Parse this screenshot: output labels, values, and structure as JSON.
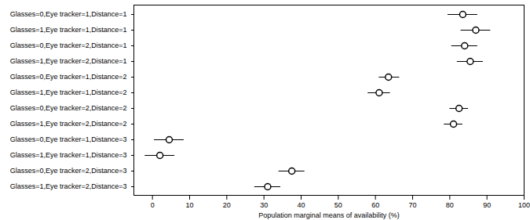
{
  "chart_data": {
    "type": "dot",
    "orientation": "horizontal",
    "categories": [
      "Glasses=0,Eye tracker=1,Distance=1",
      "Glasses=1,Eye tracker=1,Distance=1",
      "Glasses=0,Eye tracker=2,Distance=1",
      "Glasses=1,Eye tracker=2,Distance=1",
      "Glasses=0,Eye tracker=1,Distance=2",
      "Glasses=1,Eye tracker=1,Distance=2",
      "Glasses=0,Eye tracker=2,Distance=2",
      "Glasses=1,Eye tracker=2,Distance=2",
      "Glasses=0,Eye tracker=1,Distance=3",
      "Glasses=1,Eye tracker=1,Distance=3",
      "Glasses=0,Eye tracker=2,Distance=3",
      "Glasses=1,Eye tracker=2,Distance=3"
    ],
    "values": [
      83.5,
      87,
      84,
      85.5,
      63.5,
      61,
      82.5,
      81,
      4.5,
      2,
      37.5,
      31
    ],
    "lower": [
      79.5,
      83,
      80.5,
      82,
      61,
      58,
      80,
      78.5,
      0.5,
      -2,
      34,
      27.5
    ],
    "upper": [
      87.5,
      91,
      87.5,
      89,
      66.5,
      64,
      85,
      83.5,
      8.5,
      6,
      41,
      34.5
    ],
    "x_label": "Population marginal means of availability (%)",
    "xlim": [
      -5,
      100
    ],
    "xticks": [
      0,
      10,
      20,
      30,
      40,
      50,
      60,
      70,
      80,
      90,
      100
    ],
    "color": "#000000",
    "marker": "circle",
    "grid": false
  }
}
